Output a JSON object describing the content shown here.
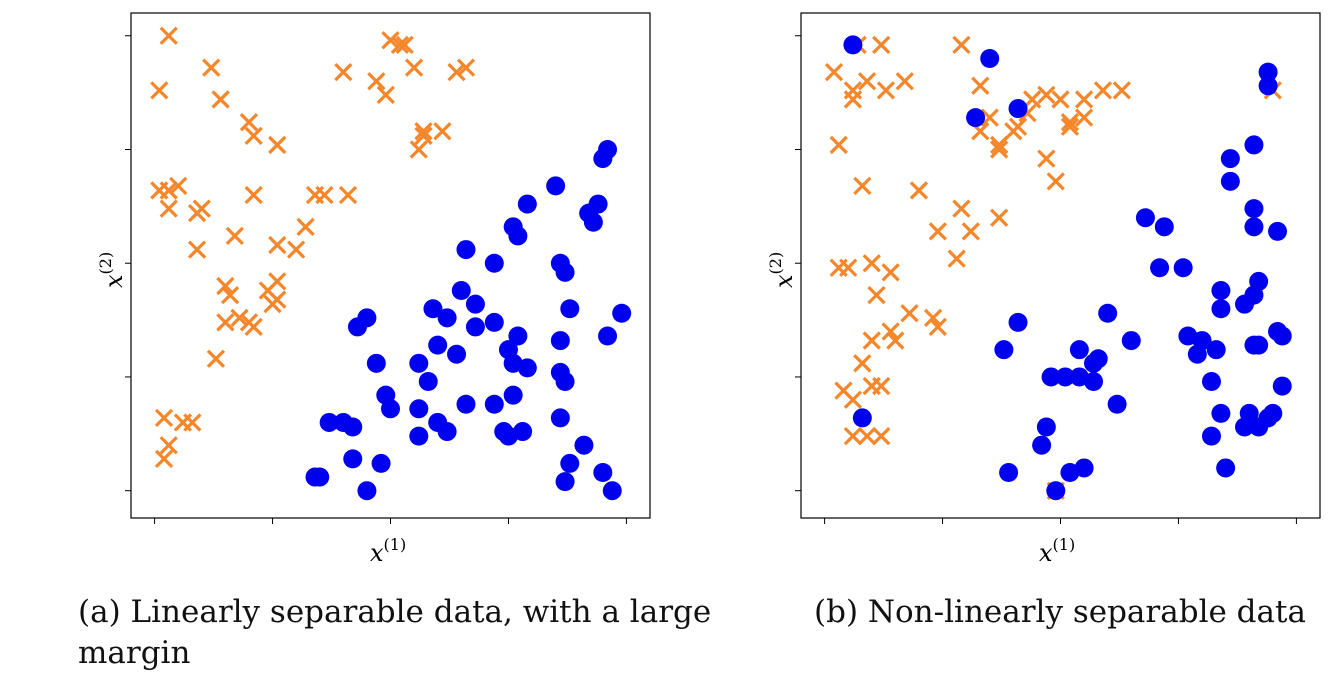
{
  "chart_data": [
    {
      "type": "scatter",
      "caption": "(a) Linearly separable data, with a large margin",
      "xlabel": "x",
      "xlabel_sup": "(1)",
      "ylabel": "x",
      "ylabel_sup": "(2)",
      "xlim": [
        -0.05,
        1.05
      ],
      "ylim": [
        -0.06,
        1.05
      ],
      "tick_labels_shown": false,
      "colors": {
        "cross": "#f5862a",
        "dot": "#0000f0"
      },
      "series": [
        {
          "marker": "x",
          "points": [
            [
              0.03,
              1.0
            ],
            [
              0.01,
              0.88
            ],
            [
              0.12,
              0.93
            ],
            [
              0.14,
              0.86
            ],
            [
              0.2,
              0.81
            ],
            [
              0.21,
              0.78
            ],
            [
              0.01,
              0.66
            ],
            [
              0.03,
              0.66
            ],
            [
              0.05,
              0.67
            ],
            [
              0.03,
              0.62
            ],
            [
              0.1,
              0.62
            ],
            [
              0.09,
              0.61
            ],
            [
              0.09,
              0.53
            ],
            [
              0.21,
              0.65
            ],
            [
              0.26,
              0.76
            ],
            [
              0.26,
              0.54
            ],
            [
              0.32,
              0.58
            ],
            [
              0.34,
              0.65
            ],
            [
              0.36,
              0.65
            ],
            [
              0.41,
              0.65
            ],
            [
              0.4,
              0.92
            ],
            [
              0.47,
              0.9
            ],
            [
              0.5,
              0.99
            ],
            [
              0.53,
              0.98
            ],
            [
              0.49,
              0.87
            ],
            [
              0.52,
              0.98
            ],
            [
              0.55,
              0.93
            ],
            [
              0.57,
              0.78
            ],
            [
              0.56,
              0.75
            ],
            [
              0.57,
              0.79
            ],
            [
              0.61,
              0.79
            ],
            [
              0.64,
              0.92
            ],
            [
              0.66,
              0.93
            ],
            [
              0.02,
              0.16
            ],
            [
              0.03,
              0.1
            ],
            [
              0.06,
              0.15
            ],
            [
              0.08,
              0.15
            ],
            [
              0.02,
              0.07
            ],
            [
              0.16,
              0.43
            ],
            [
              0.21,
              0.36
            ],
            [
              0.18,
              0.38
            ],
            [
              0.15,
              0.45
            ],
            [
              0.25,
              0.41
            ],
            [
              0.3,
              0.53
            ],
            [
              0.26,
              0.46
            ],
            [
              0.17,
              0.56
            ],
            [
              0.24,
              0.44
            ],
            [
              0.15,
              0.37
            ],
            [
              0.13,
              0.29
            ],
            [
              0.2,
              0.37
            ],
            [
              0.26,
              0.42
            ]
          ]
        },
        {
          "marker": "o",
          "points": [
            [
              0.96,
              0.75
            ],
            [
              0.95,
              0.73
            ],
            [
              0.94,
              0.63
            ],
            [
              0.92,
              0.61
            ],
            [
              0.93,
              0.59
            ],
            [
              0.85,
              0.67
            ],
            [
              0.79,
              0.63
            ],
            [
              0.76,
              0.58
            ],
            [
              0.77,
              0.56
            ],
            [
              0.72,
              0.5
            ],
            [
              0.66,
              0.53
            ],
            [
              0.65,
              0.44
            ],
            [
              0.62,
              0.38
            ],
            [
              0.59,
              0.4
            ],
            [
              0.68,
              0.41
            ],
            [
              0.68,
              0.36
            ],
            [
              0.72,
              0.37
            ],
            [
              0.75,
              0.31
            ],
            [
              0.77,
              0.34
            ],
            [
              0.79,
              0.27
            ],
            [
              0.76,
              0.28
            ],
            [
              0.86,
              0.5
            ],
            [
              0.87,
              0.48
            ],
            [
              0.88,
              0.4
            ],
            [
              0.86,
              0.33
            ],
            [
              0.96,
              0.34
            ],
            [
              0.99,
              0.39
            ],
            [
              0.86,
              0.26
            ],
            [
              0.87,
              0.24
            ],
            [
              0.58,
              0.24
            ],
            [
              0.56,
              0.28
            ],
            [
              0.6,
              0.32
            ],
            [
              0.64,
              0.3
            ],
            [
              0.66,
              0.19
            ],
            [
              0.56,
              0.18
            ],
            [
              0.6,
              0.15
            ],
            [
              0.56,
              0.12
            ],
            [
              0.5,
              0.18
            ],
            [
              0.49,
              0.21
            ],
            [
              0.47,
              0.28
            ],
            [
              0.45,
              0.38
            ],
            [
              0.43,
              0.36
            ],
            [
              0.72,
              0.19
            ],
            [
              0.76,
              0.21
            ],
            [
              0.78,
              0.13
            ],
            [
              0.75,
              0.12
            ],
            [
              0.74,
              0.13
            ],
            [
              0.62,
              0.13
            ],
            [
              0.86,
              0.16
            ],
            [
              0.88,
              0.06
            ],
            [
              0.87,
              0.02
            ],
            [
              0.91,
              0.1
            ],
            [
              0.95,
              0.04
            ],
            [
              0.97,
              0.0
            ],
            [
              0.45,
              0.0
            ],
            [
              0.34,
              0.03
            ],
            [
              0.35,
              0.03
            ],
            [
              0.42,
              0.07
            ],
            [
              0.48,
              0.06
            ],
            [
              0.42,
              0.14
            ],
            [
              0.4,
              0.15
            ],
            [
              0.37,
              0.15
            ]
          ]
        }
      ]
    },
    {
      "type": "scatter",
      "caption": "(b) Non-linearly separable data",
      "xlabel": "x",
      "xlabel_sup": "(1)",
      "ylabel": "x",
      "ylabel_sup": "(2)",
      "xlim": [
        -0.05,
        1.05
      ],
      "ylim": [
        -0.06,
        1.05
      ],
      "tick_labels_shown": false,
      "colors": {
        "cross": "#f5862a",
        "dot": "#0000f0"
      },
      "series": [
        {
          "marker": "x",
          "points": [
            [
              0.12,
              0.98
            ],
            [
              0.07,
              0.98
            ],
            [
              0.02,
              0.92
            ],
            [
              0.06,
              0.88
            ],
            [
              0.09,
              0.9
            ],
            [
              0.13,
              0.88
            ],
            [
              0.17,
              0.9
            ],
            [
              0.29,
              0.98
            ],
            [
              0.33,
              0.89
            ],
            [
              0.35,
              0.82
            ],
            [
              0.33,
              0.79
            ],
            [
              0.37,
              0.76
            ],
            [
              0.4,
              0.79
            ],
            [
              0.41,
              0.8
            ],
            [
              0.43,
              0.83
            ],
            [
              0.44,
              0.86
            ],
            [
              0.47,
              0.87
            ],
            [
              0.5,
              0.86
            ],
            [
              0.55,
              0.86
            ],
            [
              0.59,
              0.88
            ],
            [
              0.63,
              0.88
            ],
            [
              0.52,
              0.8
            ],
            [
              0.49,
              0.68
            ],
            [
              0.47,
              0.73
            ],
            [
              0.52,
              0.81
            ],
            [
              0.55,
              0.82
            ],
            [
              0.03,
              0.76
            ],
            [
              0.06,
              0.86
            ],
            [
              0.08,
              0.67
            ],
            [
              0.2,
              0.66
            ],
            [
              0.24,
              0.57
            ],
            [
              0.31,
              0.57
            ],
            [
              0.28,
              0.51
            ],
            [
              0.29,
              0.62
            ],
            [
              0.37,
              0.75
            ],
            [
              0.37,
              0.6
            ],
            [
              0.03,
              0.49
            ],
            [
              0.05,
              0.49
            ],
            [
              0.1,
              0.5
            ],
            [
              0.14,
              0.48
            ],
            [
              0.11,
              0.43
            ],
            [
              0.18,
              0.39
            ],
            [
              0.24,
              0.36
            ],
            [
              0.23,
              0.38
            ],
            [
              0.14,
              0.35
            ],
            [
              0.1,
              0.33
            ],
            [
              0.15,
              0.33
            ],
            [
              0.08,
              0.28
            ],
            [
              0.1,
              0.23
            ],
            [
              0.12,
              0.23
            ],
            [
              0.04,
              0.22
            ],
            [
              0.06,
              0.2
            ],
            [
              0.06,
              0.12
            ],
            [
              0.09,
              0.12
            ],
            [
              0.12,
              0.12
            ],
            [
              0.49,
              0.0
            ],
            [
              0.94,
              0.9
            ],
            [
              0.95,
              0.88
            ]
          ]
        },
        {
          "marker": "o",
          "points": [
            [
              0.06,
              0.98
            ],
            [
              0.32,
              0.82
            ],
            [
              0.41,
              0.84
            ],
            [
              0.94,
              0.92
            ],
            [
              0.94,
              0.89
            ],
            [
              0.86,
              0.73
            ],
            [
              0.91,
              0.76
            ],
            [
              0.91,
              0.62
            ],
            [
              0.86,
              0.68
            ],
            [
              0.71,
              0.49
            ],
            [
              0.76,
              0.49
            ],
            [
              0.68,
              0.6
            ],
            [
              0.72,
              0.58
            ],
            [
              0.84,
              0.4
            ],
            [
              0.84,
              0.44
            ],
            [
              0.92,
              0.46
            ],
            [
              0.91,
              0.43
            ],
            [
              0.89,
              0.41
            ],
            [
              0.91,
              0.32
            ],
            [
              0.96,
              0.35
            ],
            [
              0.97,
              0.23
            ],
            [
              0.92,
              0.32
            ],
            [
              0.94,
              0.16
            ],
            [
              0.92,
              0.14
            ],
            [
              0.8,
              0.33
            ],
            [
              0.77,
              0.34
            ],
            [
              0.79,
              0.3
            ],
            [
              0.83,
              0.31
            ],
            [
              0.82,
              0.24
            ],
            [
              0.84,
              0.17
            ],
            [
              0.82,
              0.12
            ],
            [
              0.89,
              0.14
            ],
            [
              0.9,
              0.17
            ],
            [
              0.95,
              0.17
            ],
            [
              0.6,
              0.39
            ],
            [
              0.65,
              0.33
            ],
            [
              0.57,
              0.28
            ],
            [
              0.58,
              0.29
            ],
            [
              0.54,
              0.31
            ],
            [
              0.51,
              0.25
            ],
            [
              0.48,
              0.25
            ],
            [
              0.57,
              0.24
            ],
            [
              0.62,
              0.19
            ],
            [
              0.47,
              0.14
            ],
            [
              0.46,
              0.1
            ],
            [
              0.55,
              0.05
            ],
            [
              0.49,
              0.0
            ],
            [
              0.38,
              0.31
            ],
            [
              0.41,
              0.37
            ],
            [
              0.54,
              0.25
            ],
            [
              0.08,
              0.16
            ],
            [
              0.52,
              0.04
            ],
            [
              0.39,
              0.04
            ],
            [
              0.85,
              0.05
            ],
            [
              0.96,
              0.57
            ],
            [
              0.91,
              0.58
            ],
            [
              0.97,
              0.34
            ],
            [
              0.35,
              0.95
            ]
          ]
        }
      ]
    }
  ]
}
